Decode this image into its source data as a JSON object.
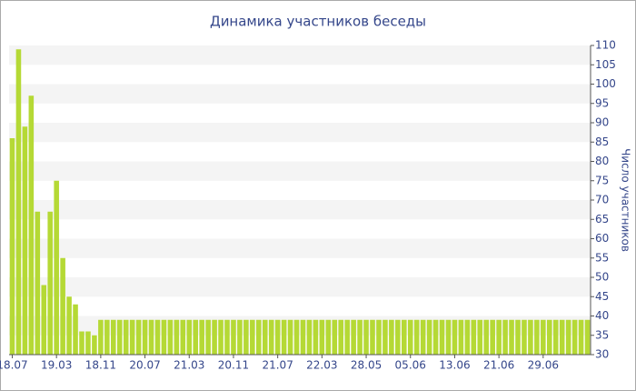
{
  "chart_data": {
    "type": "bar",
    "title": "Динамика участников беседы",
    "y_axis_label": "Число участников",
    "categories": [
      "18.07",
      null,
      null,
      null,
      null,
      null,
      null,
      "19.03",
      null,
      null,
      null,
      null,
      null,
      null,
      "18.11",
      null,
      null,
      null,
      null,
      null,
      null,
      "20.07",
      null,
      null,
      null,
      null,
      null,
      null,
      "21.03",
      null,
      null,
      null,
      null,
      null,
      null,
      "20.11",
      null,
      null,
      null,
      null,
      null,
      null,
      "21.07",
      null,
      null,
      null,
      null,
      null,
      null,
      "22.03",
      null,
      null,
      null,
      null,
      null,
      null,
      "28.05",
      null,
      null,
      null,
      null,
      null,
      null,
      "05.06",
      null,
      null,
      null,
      null,
      null,
      null,
      "13.06",
      null,
      null,
      null,
      null,
      null,
      null,
      "21.06",
      null,
      null,
      null,
      null,
      null,
      null,
      "29.06",
      null,
      null,
      null,
      null,
      null,
      null,
      null
    ],
    "values": [
      86,
      109,
      89,
      97,
      67,
      48,
      67,
      75,
      55,
      45,
      43,
      36,
      36,
      35,
      39,
      39,
      39,
      39,
      39,
      39,
      39,
      39,
      39,
      39,
      39,
      39,
      39,
      39,
      39,
      39,
      39,
      39,
      39,
      39,
      39,
      39,
      39,
      39,
      39,
      39,
      39,
      39,
      39,
      39,
      39,
      39,
      39,
      39,
      39,
      39,
      39,
      39,
      39,
      39,
      39,
      39,
      39,
      39,
      39,
      39,
      39,
      39,
      39,
      39,
      39,
      39,
      39,
      39,
      39,
      39,
      39,
      39,
      39,
      39,
      39,
      39,
      39,
      39,
      39,
      39,
      39,
      39,
      39,
      39,
      39,
      39,
      39,
      39,
      39,
      39,
      39,
      39
    ],
    "color": "#b5d935",
    "ylim": [
      30,
      110
    ],
    "yticks": [
      30,
      35,
      40,
      45,
      50,
      55,
      60,
      65,
      70,
      75,
      80,
      85,
      90,
      95,
      100,
      105,
      110
    ],
    "grid": true
  }
}
